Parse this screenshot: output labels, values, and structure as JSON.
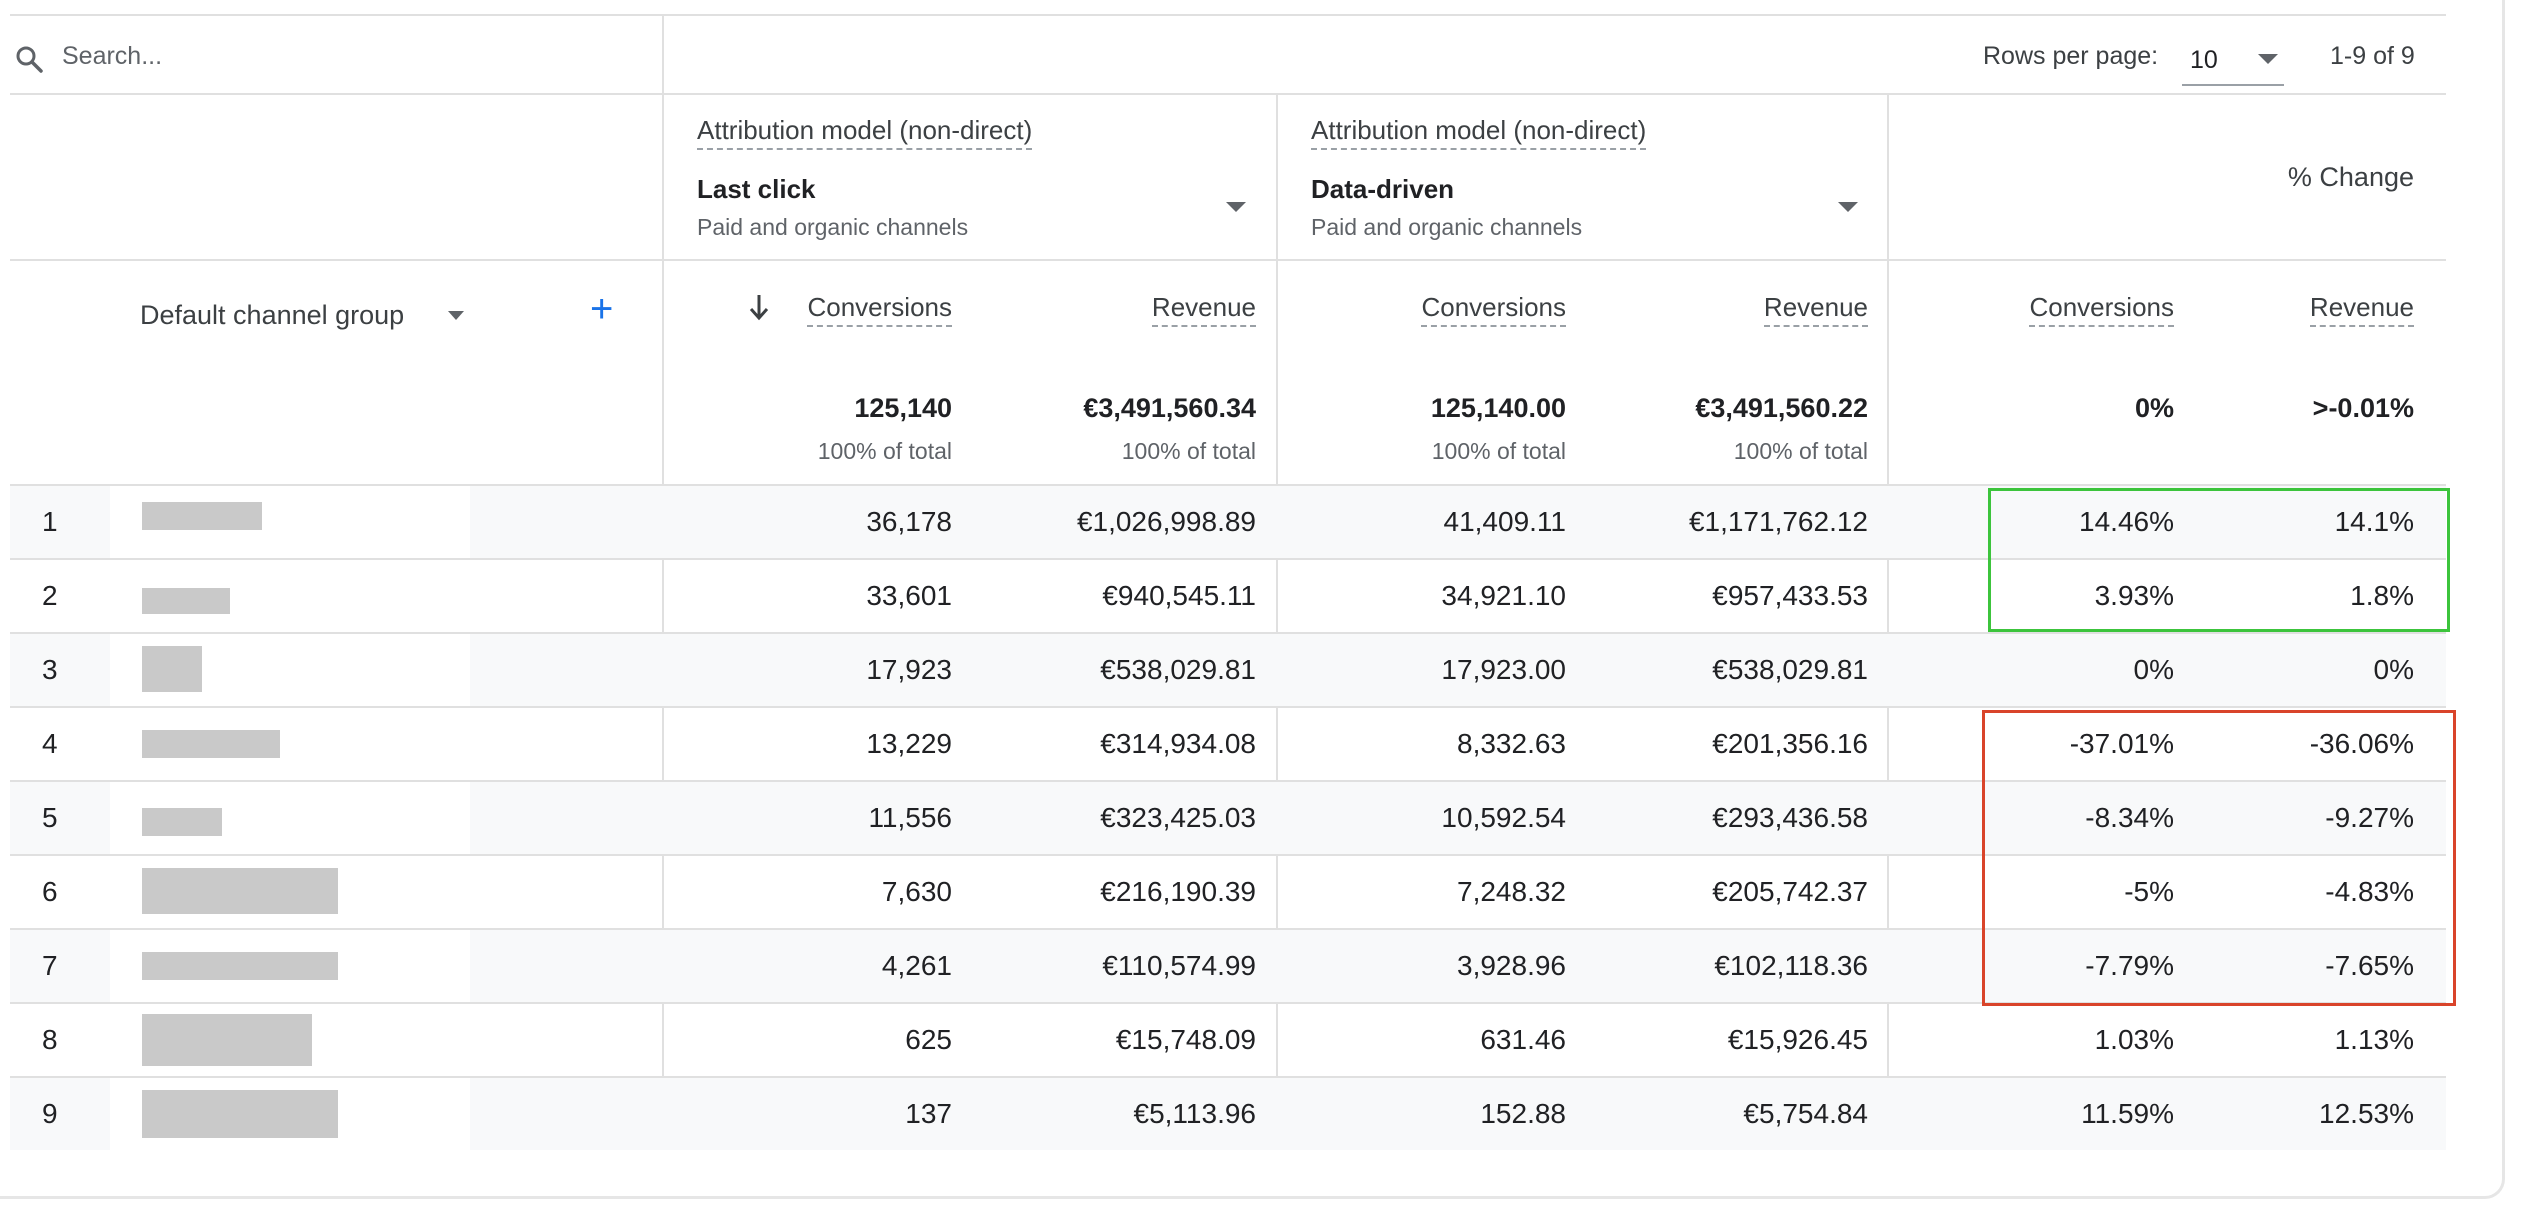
{
  "search": {
    "placeholder": "Search..."
  },
  "pagination": {
    "rows_per_page_label": "Rows per page:",
    "rows_per_page_value": "10",
    "range_text": "1-9 of 9"
  },
  "attribution": [
    {
      "label": "Attribution model (non-direct)",
      "model": "Last click",
      "scope": "Paid and organic channels"
    },
    {
      "label": "Attribution model (non-direct)",
      "model": "Data-driven",
      "scope": "Paid and organic channels"
    }
  ],
  "pct_change_title": "% Change",
  "dimension": {
    "label": "Default channel group",
    "add_symbol": "+"
  },
  "columns": {
    "lc_conversions": "Conversions",
    "lc_revenue": "Revenue",
    "dd_conversions": "Conversions",
    "dd_revenue": "Revenue",
    "pc_conversions": "Conversions",
    "pc_revenue": "Revenue"
  },
  "totals": {
    "lc_conversions": "125,140",
    "lc_conversions_sub": "100% of total",
    "lc_revenue": "€3,491,560.34",
    "lc_revenue_sub": "100% of total",
    "dd_conversions": "125,140.00",
    "dd_conversions_sub": "100% of total",
    "dd_revenue": "€3,491,560.22",
    "dd_revenue_sub": "100% of total",
    "pc_conversions": "0%",
    "pc_revenue": ">-0.01%"
  },
  "rows": [
    {
      "index": "1",
      "lc_conv": "36,178",
      "lc_rev": "€1,026,998.89",
      "dd_conv": "41,409.11",
      "dd_rev": "€1,171,762.12",
      "pc_conv": "14.46%",
      "pc_rev": "14.1%"
    },
    {
      "index": "2",
      "lc_conv": "33,601",
      "lc_rev": "€940,545.11",
      "dd_conv": "34,921.10",
      "dd_rev": "€957,433.53",
      "pc_conv": "3.93%",
      "pc_rev": "1.8%"
    },
    {
      "index": "3",
      "lc_conv": "17,923",
      "lc_rev": "€538,029.81",
      "dd_conv": "17,923.00",
      "dd_rev": "€538,029.81",
      "pc_conv": "0%",
      "pc_rev": "0%"
    },
    {
      "index": "4",
      "lc_conv": "13,229",
      "lc_rev": "€314,934.08",
      "dd_conv": "8,332.63",
      "dd_rev": "€201,356.16",
      "pc_conv": "-37.01%",
      "pc_rev": "-36.06%"
    },
    {
      "index": "5",
      "lc_conv": "11,556",
      "lc_rev": "€323,425.03",
      "dd_conv": "10,592.54",
      "dd_rev": "€293,436.58",
      "pc_conv": "-8.34%",
      "pc_rev": "-9.27%"
    },
    {
      "index": "6",
      "lc_conv": "7,630",
      "lc_rev": "€216,190.39",
      "dd_conv": "7,248.32",
      "dd_rev": "€205,742.37",
      "pc_conv": "-5%",
      "pc_rev": "-4.83%"
    },
    {
      "index": "7",
      "lc_conv": "4,261",
      "lc_rev": "€110,574.99",
      "dd_conv": "3,928.96",
      "dd_rev": "€102,118.36",
      "pc_conv": "-7.79%",
      "pc_rev": "-7.65%"
    },
    {
      "index": "8",
      "lc_conv": "625",
      "lc_rev": "€15,748.09",
      "dd_conv": "631.46",
      "dd_rev": "€15,926.45",
      "pc_conv": "1.03%",
      "pc_rev": "1.13%"
    },
    {
      "index": "9",
      "lc_conv": "137",
      "lc_rev": "€5,113.96",
      "dd_conv": "152.88",
      "dd_rev": "€5,754.84",
      "pc_conv": "11.59%",
      "pc_rev": "12.53%"
    }
  ],
  "colors": {
    "positive_highlight": "#3cc43c",
    "negative_highlight": "#d9442a",
    "add_button": "#1a73e8"
  }
}
